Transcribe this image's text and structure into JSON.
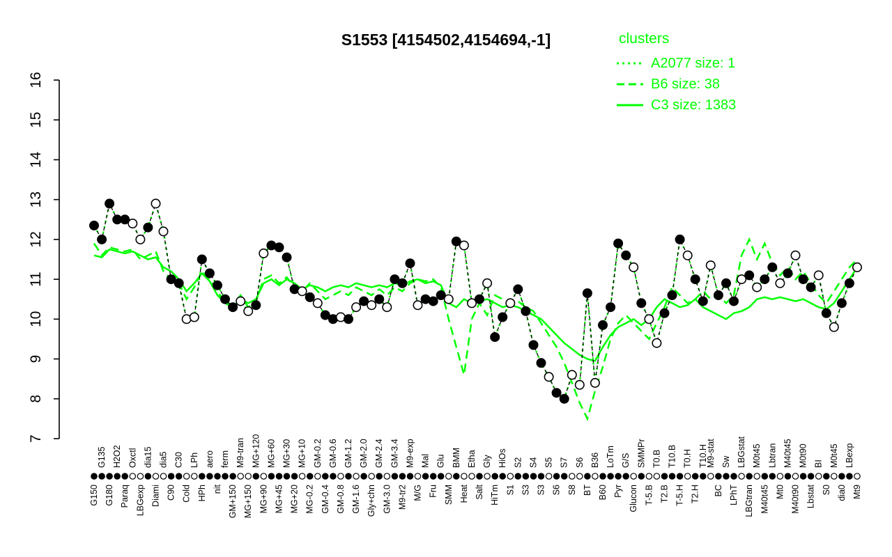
{
  "chart": {
    "title": "S1553 [4154502,4154694,-1]",
    "colors": {
      "cluster": "#00ff00",
      "profile": "#000000",
      "background": "#ffffff"
    }
  },
  "legend": {
    "title": "clusters",
    "position": "top-right",
    "entries": [
      {
        "label": "A2077 size: 1",
        "style": "dotted",
        "color": "#00ff00"
      },
      {
        "label": "B6 size: 38",
        "style": "dashed",
        "color": "#00ff00"
      },
      {
        "label": "C3 size: 1383",
        "style": "solid",
        "color": "#00ff00"
      }
    ]
  },
  "chart_data": {
    "type": "line",
    "title": "S1553 [4154502,4154694,-1]",
    "xlabel": "",
    "ylabel": "",
    "ylim": [
      7,
      16
    ],
    "yticks": [
      7,
      8,
      9,
      10,
      11,
      12,
      13,
      14,
      15,
      16
    ],
    "grid": false,
    "legend_position": "top-right",
    "categories": [
      "G150",
      "G135",
      "G180",
      "H2O2",
      "Paraq",
      "Oxctl",
      "LBGexp",
      "dia15",
      "Diami",
      "dia5",
      "C90",
      "C30",
      "Cold",
      "LPh",
      "HPh",
      "aero",
      "nit",
      "ferm",
      "GM+150",
      "M9-tran",
      "MG+150",
      "MG+120",
      "MG+90",
      "MG+60",
      "MG+45",
      "MG+30",
      "MG+20",
      "MG+10",
      "MG-0.2",
      "GM-0.2",
      "GM-0.4",
      "GM-0.6",
      "GM-0.8",
      "GM-1.2",
      "GM-1.6",
      "GM-2.0",
      "Gly+chn",
      "GM-2.4",
      "GM-3.0",
      "GM-3.4",
      "M9-tr2",
      "M9-exp",
      "M/G",
      "Mal",
      "Fru",
      "Glu",
      "SMM",
      "BMM",
      "Heat",
      "Etha",
      "Salt",
      "Gly",
      "HiTm",
      "HiOs",
      "S1",
      "S2",
      "S3",
      "S4",
      "S3",
      "S5",
      "S6",
      "S7",
      "S8",
      "S6",
      "BT",
      "B36",
      "B60",
      "LoTm",
      "Pyr",
      "G/S",
      "Glucon",
      "SMMPr",
      "T-5.B",
      "T0.B",
      "T2.B",
      "T10.B",
      "T-5.H",
      "T0.H",
      "T2.H",
      "T10.H",
      "M9-stat",
      "BC",
      "Sw",
      "LPhT",
      "LBGstat",
      "LBGtran",
      "M0t45",
      "M40t45",
      "Lbtran",
      "Mt0",
      "M40t45",
      "M40t90",
      "M0t90",
      "Lbstat",
      "BI",
      "S0",
      "M0t45",
      "dia0",
      "LBexp",
      "Mt9"
    ],
    "label_row": [
      "bottom",
      "top",
      "bottom",
      "top",
      "bottom",
      "top",
      "bottom",
      "top",
      "bottom",
      "top",
      "bottom",
      "top",
      "bottom",
      "top",
      "bottom",
      "top",
      "bottom",
      "top",
      "bottom",
      "top",
      "bottom",
      "top",
      "bottom",
      "top",
      "bottom",
      "top",
      "bottom",
      "top",
      "bottom",
      "top",
      "bottom",
      "top",
      "bottom",
      "top",
      "bottom",
      "top",
      "bottom",
      "top",
      "bottom",
      "top",
      "bottom",
      "top",
      "bottom",
      "top",
      "bottom",
      "top",
      "bottom",
      "top",
      "bottom",
      "top",
      "bottom",
      "top",
      "bottom",
      "top",
      "bottom",
      "top",
      "bottom",
      "top",
      "bottom",
      "top",
      "bottom",
      "top",
      "bottom",
      "top",
      "bottom",
      "top",
      "bottom",
      "top",
      "bottom",
      "top",
      "bottom",
      "top",
      "bottom",
      "top",
      "bottom",
      "top",
      "bottom",
      "top",
      "bottom",
      "top",
      "top",
      "bottom",
      "top",
      "bottom",
      "top",
      "bottom",
      "top",
      "bottom",
      "top",
      "bottom",
      "top",
      "bottom",
      "top",
      "bottom",
      "top",
      "bottom",
      "top",
      "bottom",
      "top",
      "bottom"
    ],
    "markers": [
      "filled",
      "filled",
      "filled",
      "filled",
      "filled",
      "open",
      "open",
      "filled",
      "open",
      "open",
      "filled",
      "filled",
      "open",
      "open",
      "filled",
      "filled",
      "filled",
      "filled",
      "filled",
      "open",
      "open",
      "filled",
      "open",
      "filled",
      "filled",
      "filled",
      "filled",
      "open",
      "filled",
      "open",
      "filled",
      "filled",
      "open",
      "filled",
      "open",
      "filled",
      "open",
      "filled",
      "open",
      "filled",
      "filled",
      "filled",
      "open",
      "filled",
      "filled",
      "filled",
      "open",
      "filled",
      "open",
      "open",
      "filled",
      "open",
      "filled",
      "filled",
      "open",
      "filled",
      "filled",
      "filled",
      "filled",
      "open",
      "filled",
      "filled",
      "open",
      "open",
      "filled",
      "open",
      "filled",
      "filled",
      "filled",
      "filled",
      "open",
      "filled",
      "open",
      "open",
      "filled",
      "filled",
      "filled",
      "open",
      "filled",
      "filled",
      "open",
      "filled",
      "filled",
      "filled",
      "open",
      "filled",
      "open",
      "filled",
      "filled",
      "open",
      "filled",
      "open",
      "filled",
      "filled",
      "open",
      "filled",
      "open",
      "filled",
      "filled",
      "open"
    ],
    "series": [
      {
        "name": "S1553 profile",
        "color": "#000000",
        "style": "dashed-with-points",
        "values": [
          12.35,
          12.0,
          12.9,
          12.5,
          12.5,
          12.4,
          12.0,
          12.3,
          12.9,
          12.2,
          11.0,
          10.9,
          10.0,
          10.05,
          11.5,
          11.15,
          10.85,
          10.5,
          10.3,
          10.45,
          10.2,
          10.35,
          11.65,
          11.85,
          11.8,
          11.55,
          10.75,
          10.7,
          10.55,
          10.4,
          10.1,
          10.0,
          10.05,
          10.0,
          10.3,
          10.45,
          10.35,
          10.5,
          10.3,
          11.0,
          10.9,
          11.4,
          10.35,
          10.5,
          10.45,
          10.6,
          10.5,
          11.95,
          11.85,
          10.4,
          10.5,
          10.9,
          9.55,
          10.05,
          10.4,
          10.75,
          10.2,
          9.35,
          8.9,
          8.55,
          8.15,
          8.0,
          8.6,
          8.35,
          10.65,
          8.4,
          9.85,
          10.3,
          11.9,
          11.6,
          11.3,
          10.4,
          10.0,
          9.4,
          10.15,
          10.6,
          12.0,
          11.6,
          11.0,
          10.45,
          11.35,
          10.6,
          10.9,
          10.45,
          11.0,
          11.1,
          10.8,
          11.0,
          11.3,
          10.9,
          11.15,
          11.6,
          11.0,
          10.8,
          11.1,
          10.15,
          9.8,
          10.4,
          10.9,
          11.3
        ]
      },
      {
        "name": "A2077 size: 1",
        "color": "#00ff00",
        "style": "dotted",
        "values": [
          12.35,
          12.0,
          12.9,
          12.5,
          12.5,
          12.4,
          12.0,
          12.3,
          12.9,
          12.2,
          11.0,
          10.9,
          10.0,
          10.05,
          11.5,
          11.15,
          10.85,
          10.5,
          10.3,
          10.45,
          10.2,
          10.35,
          11.65,
          11.85,
          11.8,
          11.55,
          10.75,
          10.7,
          10.55,
          10.4,
          10.1,
          10.0,
          10.05,
          10.0,
          10.3,
          10.45,
          10.35,
          10.5,
          10.3,
          11.0,
          10.9,
          11.4,
          10.35,
          10.5,
          10.45,
          10.6,
          10.5,
          11.95,
          11.85,
          10.4,
          10.5,
          10.9,
          9.55,
          10.05,
          10.4,
          10.75,
          10.2,
          9.35,
          8.9,
          8.55,
          8.15,
          8.0,
          8.6,
          8.35,
          10.65,
          8.4,
          9.85,
          10.3,
          11.9,
          11.6,
          11.3,
          10.4,
          10.0,
          9.4,
          10.15,
          10.6,
          12.0,
          11.6,
          11.0,
          10.45,
          11.35,
          10.6,
          10.9,
          10.45,
          11.0,
          11.1,
          10.8,
          11.0,
          11.3,
          10.9,
          11.15,
          11.6,
          11.0,
          10.8,
          11.1,
          10.15,
          9.8,
          10.4,
          10.9,
          11.3
        ]
      },
      {
        "name": "B6 size: 38",
        "color": "#00ff00",
        "style": "dashed",
        "values": [
          11.9,
          11.6,
          11.8,
          11.75,
          11.7,
          11.75,
          11.5,
          11.6,
          11.7,
          11.2,
          11.0,
          10.9,
          10.5,
          10.8,
          11.2,
          11.0,
          10.7,
          10.4,
          10.35,
          10.6,
          10.3,
          10.45,
          11.0,
          11.1,
          10.9,
          11.05,
          10.8,
          10.7,
          10.9,
          10.7,
          10.5,
          10.6,
          10.7,
          10.6,
          10.8,
          10.7,
          10.6,
          10.75,
          10.6,
          10.8,
          10.7,
          10.9,
          11.0,
          10.95,
          11.0,
          10.8,
          10.0,
          9.3,
          8.6,
          10.0,
          10.4,
          10.1,
          10.6,
          10.5,
          10.4,
          10.45,
          10.3,
          10.2,
          9.9,
          9.6,
          9.3,
          8.9,
          8.4,
          7.9,
          7.5,
          8.2,
          8.8,
          9.5,
          9.9,
          10.1,
          9.9,
          9.7,
          9.5,
          9.9,
          10.3,
          10.8,
          10.6,
          10.4,
          10.5,
          10.7,
          10.5,
          10.6,
          10.4,
          10.6,
          11.6,
          12.0,
          11.5,
          11.9,
          11.4,
          11.1,
          11.3,
          11.0,
          11.2,
          10.9,
          10.6,
          10.4,
          10.7,
          11.0,
          11.3,
          11.5
        ]
      },
      {
        "name": "C3 size: 1383",
        "color": "#00ff00",
        "style": "solid",
        "values": [
          11.6,
          11.55,
          11.75,
          11.7,
          11.65,
          11.7,
          11.6,
          11.5,
          11.55,
          11.3,
          11.2,
          11.0,
          10.7,
          10.9,
          11.15,
          10.95,
          10.6,
          10.4,
          10.3,
          10.5,
          10.4,
          10.5,
          10.9,
          11.0,
          10.85,
          11.0,
          10.9,
          10.75,
          10.85,
          10.8,
          10.7,
          10.8,
          10.85,
          10.8,
          10.9,
          10.85,
          10.8,
          10.85,
          10.8,
          10.9,
          10.85,
          10.95,
          11.0,
          10.9,
          10.95,
          10.85,
          10.4,
          10.3,
          10.5,
          10.4,
          10.45,
          10.5,
          10.4,
          10.3,
          10.35,
          10.3,
          10.2,
          10.1,
          10.0,
          9.8,
          9.6,
          9.4,
          9.25,
          9.1,
          9.0,
          8.95,
          9.3,
          9.6,
          9.8,
          9.9,
          10.0,
          9.85,
          10.0,
          10.3,
          10.5,
          10.4,
          10.3,
          10.35,
          10.5,
          10.3,
          10.2,
          10.1,
          10.0,
          10.15,
          10.2,
          10.3,
          10.5,
          10.55,
          10.5,
          10.55,
          10.5,
          10.45,
          10.5,
          10.4,
          10.3,
          10.25,
          10.4,
          10.7,
          11.0,
          11.3
        ]
      }
    ]
  }
}
